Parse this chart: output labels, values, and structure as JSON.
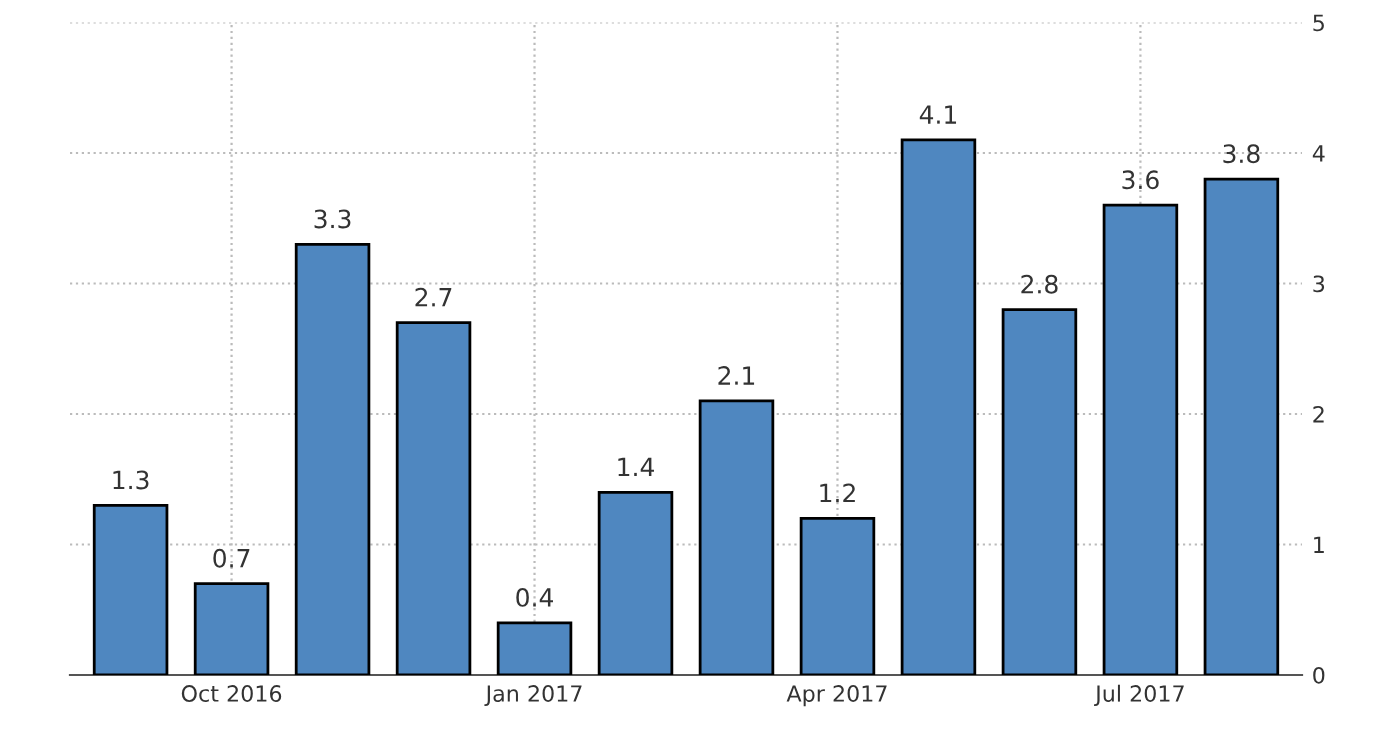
{
  "chart_data": {
    "type": "bar",
    "categories": [
      null,
      "Oct 2016",
      null,
      null,
      "Jan 2017",
      null,
      null,
      "Apr 2017",
      null,
      null,
      "Jul 2017",
      null
    ],
    "values": [
      1.3,
      0.7,
      3.3,
      2.7,
      0.4,
      1.4,
      2.1,
      1.2,
      4.1,
      2.8,
      3.6,
      3.8
    ],
    "color": "#4f87c0",
    "ylim": [
      0,
      5
    ],
    "yticks": [
      0,
      1,
      2,
      3,
      4,
      5
    ],
    "grid": true,
    "data_labels": true
  }
}
